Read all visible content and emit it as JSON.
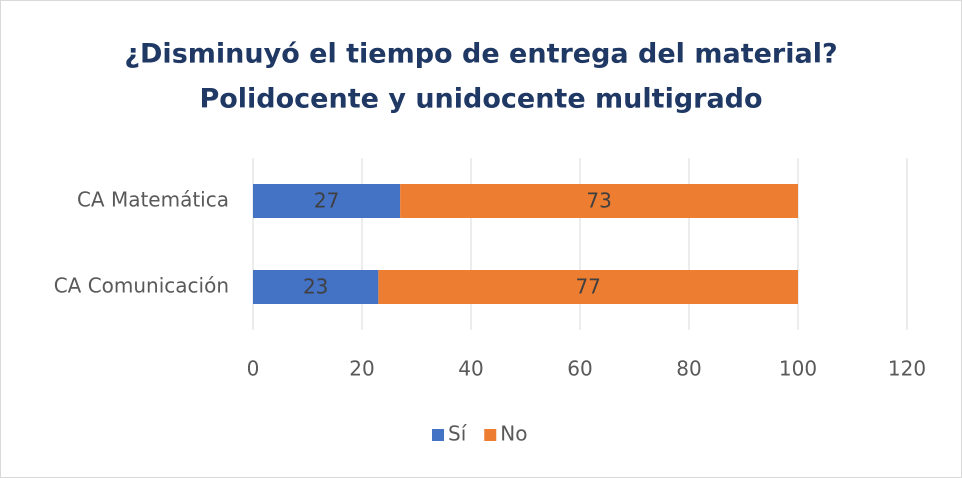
{
  "chart_data": {
    "type": "bar",
    "orientation": "horizontal",
    "stacked": true,
    "title": [
      "¿Disminuyó el tiempo de entrega del material?",
      "Polidocente y unidocente multigrado"
    ],
    "categories": [
      "CA Matemática",
      "CA Comunicación"
    ],
    "series": [
      {
        "name": "Sí",
        "color": "#4472c4",
        "values": [
          27,
          23
        ]
      },
      {
        "name": "No",
        "color": "#ed7d31",
        "values": [
          73,
          77
        ]
      }
    ],
    "xlim": [
      0,
      120
    ],
    "xticks": [
      0,
      20,
      40,
      60,
      80,
      100,
      120
    ],
    "grid": true,
    "legend": "bottom"
  }
}
